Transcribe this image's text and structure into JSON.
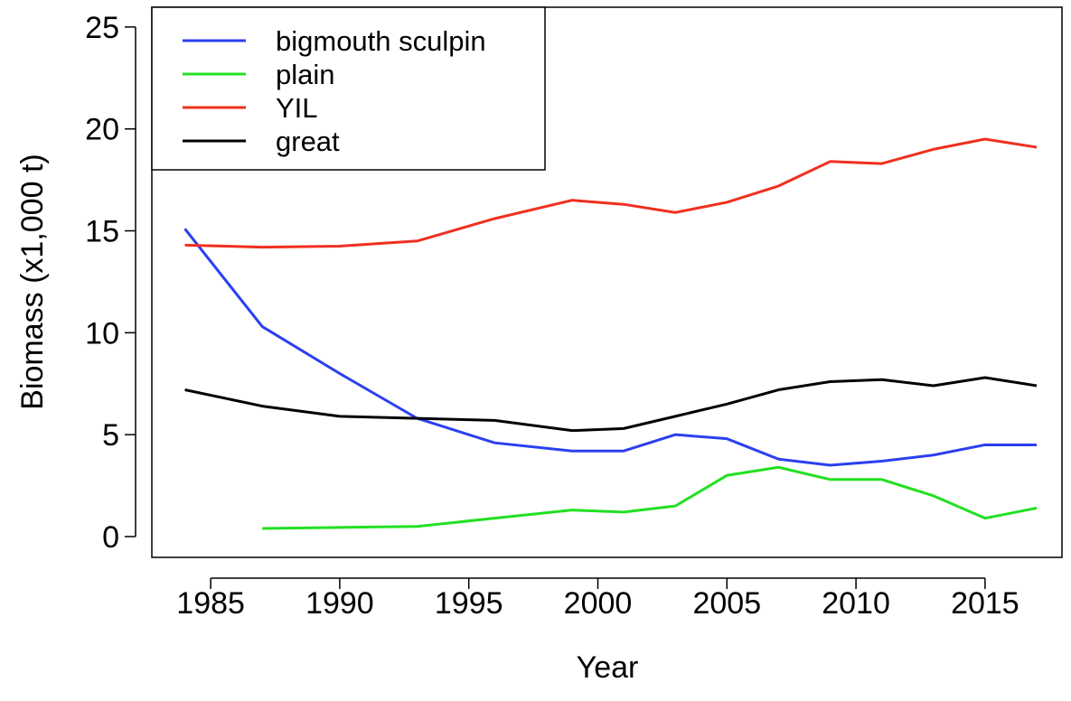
{
  "chart_data": {
    "type": "line",
    "x_label": "Year",
    "y_label": "Biomass (x1,000 t)",
    "x": [
      1984,
      1987,
      1990,
      1993,
      1996,
      1999,
      2001,
      2003,
      2005,
      2007,
      2009,
      2011,
      2013,
      2015,
      2017
    ],
    "series": [
      {
        "name": "bigmouth sculpin",
        "color": "#2b3ff0",
        "values": [
          15.1,
          10.3,
          8.0,
          5.8,
          4.6,
          4.2,
          4.2,
          5.0,
          4.8,
          3.8,
          3.5,
          3.7,
          4.0,
          4.5,
          4.5
        ]
      },
      {
        "name": "plain",
        "color": "#22e022",
        "values": [
          null,
          0.4,
          0.45,
          0.5,
          0.9,
          1.3,
          1.2,
          1.5,
          3.0,
          3.4,
          2.8,
          2.8,
          2.0,
          0.9,
          1.4
        ]
      },
      {
        "name": "YIL",
        "color": "#f03020",
        "values": [
          14.3,
          14.2,
          14.25,
          14.5,
          15.6,
          16.5,
          16.3,
          15.9,
          16.4,
          17.2,
          18.4,
          18.3,
          19.0,
          19.5,
          19.1
        ]
      },
      {
        "name": "great",
        "color": "#000000",
        "values": [
          7.2,
          6.4,
          5.9,
          5.8,
          5.7,
          5.2,
          5.3,
          5.9,
          6.5,
          7.2,
          7.6,
          7.7,
          7.4,
          7.8,
          7.4
        ]
      }
    ],
    "xlim": [
      1982.72,
      2017.98
    ],
    "ylim": [
      -1.02,
      25.97
    ],
    "xticks": [
      1985,
      1990,
      1995,
      2000,
      2005,
      2010,
      2015
    ],
    "yticks": [
      0,
      5,
      10,
      15,
      20,
      25
    ],
    "legend": "top-left"
  }
}
